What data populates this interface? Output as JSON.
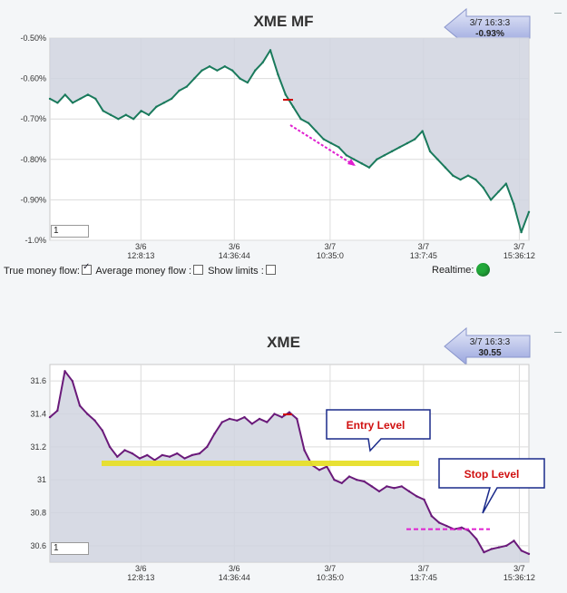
{
  "colors": {
    "mf_line": "#1a7a5c",
    "price_line": "#6a1a7a",
    "fill": "#d0d4df",
    "entry": "#e7e02a",
    "stop": "#e020d0",
    "trend": "#e020d0"
  },
  "top": {
    "title": "XME MF",
    "badge_time": "3/7 16:3:3",
    "badge_value": "-0.93%",
    "zoom_value": "1",
    "controls": {
      "true_money_flow": "True money flow:",
      "average_money_flow": "Average money flow :",
      "show_limits": "Show limits :",
      "realtime": "Realtime:"
    }
  },
  "bottom": {
    "title": "XME",
    "badge_time": "3/7 16:3:3",
    "badge_value": "30.55",
    "zoom_value": "1",
    "entry_label": "Entry Level",
    "stop_label": "Stop Level"
  },
  "chart_data": [
    {
      "type": "line",
      "title": "XME MF",
      "y_unit": "%",
      "ylim": [
        -1.0,
        -0.5
      ],
      "yticks": [
        "-0.50%",
        "-0.60%",
        "-0.70%",
        "-0.80%",
        "-0.90%",
        "-1.0%"
      ],
      "ytick_values": [
        -0.5,
        -0.6,
        -0.7,
        -0.8,
        -0.9,
        -1.0
      ],
      "xticks": [
        {
          "date": "3/6",
          "time": "12:8:13"
        },
        {
          "date": "3/6",
          "time": "14:36:44"
        },
        {
          "date": "3/7",
          "time": "10:35:0"
        },
        {
          "date": "3/7",
          "time": "13:7:45"
        },
        {
          "date": "3/7",
          "time": "15:36:12"
        }
      ],
      "grid": true,
      "series": [
        {
          "values": [
            -0.65,
            -0.66,
            -0.64,
            -0.66,
            -0.65,
            -0.64,
            -0.65,
            -0.68,
            -0.69,
            -0.7,
            -0.69,
            -0.7,
            -0.68,
            -0.69,
            -0.67,
            -0.66,
            -0.65,
            -0.63,
            -0.62,
            -0.6,
            -0.58,
            -0.57,
            -0.58,
            -0.57,
            -0.58,
            -0.6,
            -0.61,
            -0.58,
            -0.56,
            -0.53,
            -0.59,
            -0.64,
            -0.67,
            -0.7,
            -0.71,
            -0.73,
            -0.75,
            -0.76,
            -0.77,
            -0.79,
            -0.8,
            -0.81,
            -0.82,
            -0.8,
            -0.79,
            -0.78,
            -0.77,
            -0.76,
            -0.75,
            -0.73,
            -0.78,
            -0.8,
            -0.82,
            -0.84,
            -0.85,
            -0.84,
            -0.85,
            -0.87,
            -0.9,
            -0.88,
            -0.86,
            -0.91,
            -0.98,
            -0.93
          ]
        }
      ],
      "annotations": [
        "trend arrow"
      ]
    },
    {
      "type": "line",
      "title": "XME",
      "ylim": [
        30.5,
        31.7
      ],
      "yticks": [
        "31.6",
        "31.4",
        "31.2",
        "31",
        "30.8",
        "30.6"
      ],
      "ytick_values": [
        31.6,
        31.4,
        31.2,
        31.0,
        30.8,
        30.6
      ],
      "xticks": [
        {
          "date": "3/6",
          "time": "12:8:13"
        },
        {
          "date": "3/6",
          "time": "14:36:44"
        },
        {
          "date": "3/7",
          "time": "10:35:0"
        },
        {
          "date": "3/7",
          "time": "13:7:45"
        },
        {
          "date": "3/7",
          "time": "15:36:12"
        }
      ],
      "grid": true,
      "series": [
        {
          "values": [
            31.38,
            31.42,
            31.66,
            31.6,
            31.45,
            31.4,
            31.36,
            31.3,
            31.2,
            31.14,
            31.18,
            31.16,
            31.13,
            31.15,
            31.12,
            31.15,
            31.14,
            31.16,
            31.13,
            31.15,
            31.16,
            31.2,
            31.28,
            31.35,
            31.37,
            31.36,
            31.38,
            31.34,
            31.37,
            31.35,
            31.4,
            31.38,
            31.41,
            31.37,
            31.18,
            31.09,
            31.06,
            31.08,
            31.0,
            30.98,
            31.02,
            31.0,
            30.99,
            30.96,
            30.93,
            30.96,
            30.95,
            30.96,
            30.93,
            30.9,
            30.88,
            30.78,
            30.74,
            30.72,
            30.7,
            30.71,
            30.69,
            30.64,
            30.56,
            30.58,
            30.59,
            30.6,
            30.63,
            30.57,
            30.55
          ]
        }
      ],
      "reference_lines": [
        {
          "name": "Entry Level",
          "y": 31.1
        },
        {
          "name": "Stop Level",
          "y": 30.7
        }
      ]
    }
  ]
}
